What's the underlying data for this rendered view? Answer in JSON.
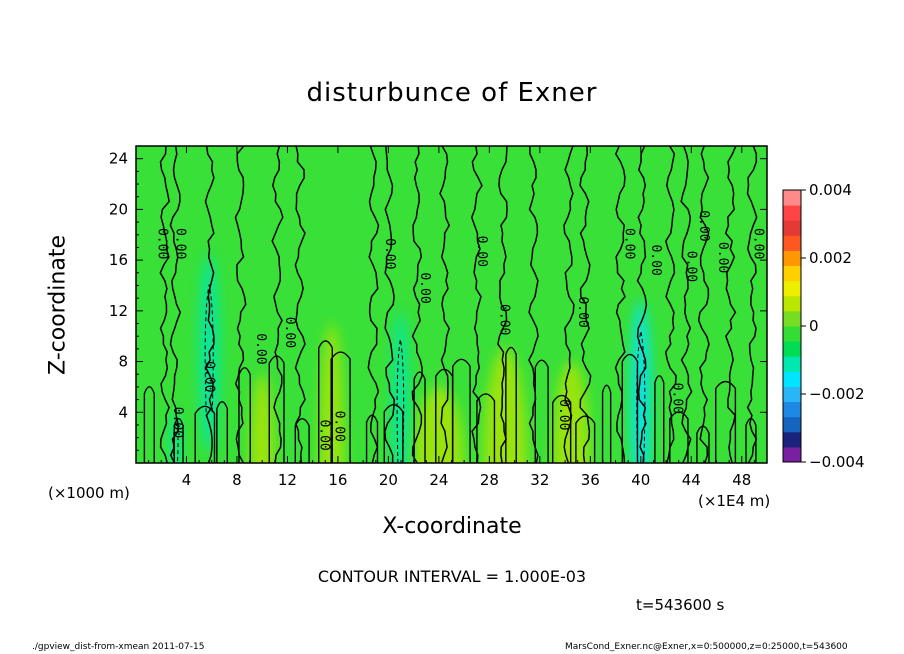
{
  "chart_data": {
    "type": "heatmap",
    "title": "disturbunce of Exner",
    "xlabel": "X-coordinate",
    "ylabel": "Z-coordinate",
    "x_unit_label": "(×1000 m)",
    "x_scale_label": "(×1E4 m)",
    "xlim": [
      0,
      50
    ],
    "ylim": [
      0,
      25
    ],
    "x_ticks": [
      4,
      8,
      12,
      16,
      20,
      24,
      28,
      32,
      36,
      40,
      44,
      48
    ],
    "y_ticks": [
      4,
      8,
      12,
      16,
      20,
      24
    ],
    "colorbar": {
      "range": [
        -0.004,
        0.004
      ],
      "tick_labels": [
        "0.004",
        "0.002",
        "0",
        "−0.002",
        "−0.004"
      ],
      "tick_values": [
        0.004,
        0.002,
        0,
        -0.002,
        -0.004
      ],
      "colors": [
        "#7b1fa2",
        "#1a237e",
        "#1565c0",
        "#1e88e5",
        "#29b6f6",
        "#00e5ff",
        "#00e8b0",
        "#00dd55",
        "#33dd33",
        "#77dd22",
        "#bbe600",
        "#eeee00",
        "#ffd000",
        "#ff9800",
        "#ff5722",
        "#e53935",
        "#ff4444",
        "#ff8a8a"
      ]
    },
    "background_color": "#38e038",
    "contour_interval": "CONTOUR INTERVAL = 1.000E-03",
    "contour_labels": [
      {
        "text": "0.00",
        "x": 1.8,
        "y": 17.3
      },
      {
        "text": "0.00",
        "x": 3.2,
        "y": 17.3
      },
      {
        "text": "0.00",
        "x": 5.5,
        "y": 6.8
      },
      {
        "text": "0.00",
        "x": 9.6,
        "y": 9.0
      },
      {
        "text": "0.00",
        "x": 11.9,
        "y": 10.3
      },
      {
        "text": "0.00",
        "x": 3.0,
        "y": 3.2
      },
      {
        "text": "0.00",
        "x": 14.6,
        "y": 2.2
      },
      {
        "text": "0.00",
        "x": 15.8,
        "y": 2.9
      },
      {
        "text": "0.00",
        "x": 19.8,
        "y": 16.5
      },
      {
        "text": "0.00",
        "x": 22.6,
        "y": 13.8
      },
      {
        "text": "0.00",
        "x": 27.1,
        "y": 16.7
      },
      {
        "text": "0.00",
        "x": 28.9,
        "y": 11.3
      },
      {
        "text": "0.00",
        "x": 35.1,
        "y": 11.9
      },
      {
        "text": "0.00",
        "x": 33.6,
        "y": 3.8
      },
      {
        "text": "0.00",
        "x": 38.8,
        "y": 17.3
      },
      {
        "text": "0.00",
        "x": 40.9,
        "y": 16.0
      },
      {
        "text": "0.00",
        "x": 42.6,
        "y": 5.1
      },
      {
        "text": "0.00",
        "x": 43.7,
        "y": 15.5
      },
      {
        "text": "0.00",
        "x": 44.7,
        "y": 18.7
      },
      {
        "text": "0.00",
        "x": 46.2,
        "y": 16.2
      },
      {
        "text": "0.00",
        "x": 49.0,
        "y": 17.3
      }
    ],
    "negative_regions": [
      {
        "x": [
          5.0,
          6.6
        ],
        "y": [
          4.0,
          19.5
        ],
        "level": -0.0012
      },
      {
        "x": [
          20.3,
          21.6
        ],
        "y": [
          0,
          15.0
        ],
        "level": -0.0012
      },
      {
        "x": [
          39.2,
          40.8
        ],
        "y": [
          0,
          16.0
        ],
        "level": -0.0016
      },
      {
        "x": [
          2.7,
          3.6
        ],
        "y": [
          0,
          5.0
        ],
        "level": -0.0009
      }
    ],
    "positive_regions": [
      {
        "x": [
          14.5,
          16.5
        ],
        "y": [
          0,
          11.0
        ],
        "level": 0.0006
      },
      {
        "x": [
          22.0,
          26.0
        ],
        "y": [
          0,
          6.0
        ],
        "level": 0.0006
      },
      {
        "x": [
          27.5,
          31.0
        ],
        "y": [
          0,
          9.0
        ],
        "level": 0.0007
      },
      {
        "x": [
          33.0,
          36.0
        ],
        "y": [
          0,
          8.0
        ],
        "level": 0.0005
      },
      {
        "x": [
          9.0,
          11.0
        ],
        "y": [
          0,
          7.0
        ],
        "level": 0.0005
      }
    ],
    "contour_lines_x": [
      2.3,
      3.1,
      5.9,
      8.3,
      11.2,
      13.0,
      18.8,
      20.1,
      22.3,
      24.5,
      27.0,
      29.1,
      31.5,
      34.3,
      35.6,
      38.4,
      40.1,
      42.4,
      43.6,
      45.0,
      47.1,
      48.8
    ]
  },
  "time_label": "t=543600 s",
  "footer_left": "./gpview_dist-from-xmean   2011-07-15",
  "footer_right": "MarsCond_Exner.nc@Exner,x=0:500000,z=0:25000,t=543600"
}
